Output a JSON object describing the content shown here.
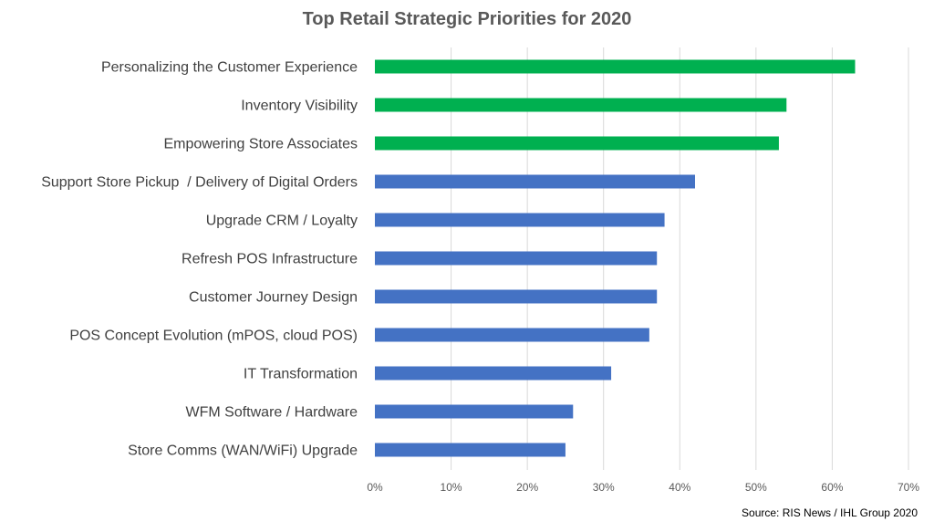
{
  "chart_data": {
    "type": "bar",
    "orientation": "horizontal",
    "title": "Top Retail Strategic Priorities for 2020",
    "source": "Source: RIS News / IHL Group 2020",
    "categories": [
      "Personalizing the Customer Experience",
      "Inventory Visibility",
      "Empowering Store Associates",
      "Support Store Pickup  / Delivery of Digital Orders",
      "Upgrade CRM / Loyalty",
      "Refresh POS Infrastructure",
      "Customer Journey Design",
      "POS Concept Evolution (mPOS, cloud POS)",
      "IT Transformation",
      "WFM Software / Hardware",
      "Store Comms (WAN/WiFi) Upgrade"
    ],
    "values": [
      63,
      54,
      53,
      42,
      38,
      37,
      37,
      36,
      31,
      26,
      25
    ],
    "bar_colors": [
      "#00B050",
      "#00B050",
      "#00B050",
      "#4472C4",
      "#4472C4",
      "#4472C4",
      "#4472C4",
      "#4472C4",
      "#4472C4",
      "#4472C4",
      "#4472C4"
    ],
    "xlim": [
      0,
      70
    ],
    "xticks": [
      "0%",
      "10%",
      "20%",
      "30%",
      "40%",
      "50%",
      "60%",
      "70%"
    ],
    "unit": "%",
    "grid": true,
    "legend": "none"
  }
}
